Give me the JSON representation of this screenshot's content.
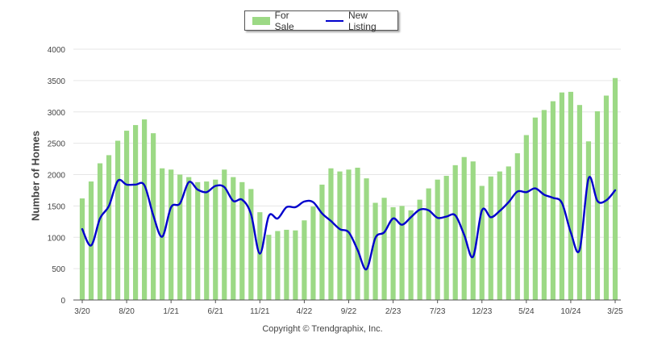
{
  "legend": {
    "for_sale_label": "For Sale",
    "new_listing_label": "New Listing"
  },
  "footer": {
    "copyright": "Copyright © Trendgraphix, Inc."
  },
  "colors": {
    "bar": "#9cd985",
    "line": "#0000cc",
    "grid": "#e6e6e6",
    "axis": "#555555"
  },
  "chart_data": {
    "type": "bar",
    "ylabel": "Number of Homes",
    "ylim": [
      0,
      4000
    ],
    "yticks": [
      0,
      500,
      1000,
      1500,
      2000,
      2500,
      3000,
      3500,
      4000
    ],
    "x_tick_labels": [
      "3/20",
      "8/20",
      "1/21",
      "6/21",
      "11/21",
      "4/22",
      "9/22",
      "2/23",
      "7/23",
      "12/23",
      "5/24",
      "10/24",
      "3/25"
    ],
    "categories": [
      "3/20",
      "4/20",
      "5/20",
      "6/20",
      "7/20",
      "8/20",
      "9/20",
      "10/20",
      "11/20",
      "12/20",
      "1/21",
      "2/21",
      "3/21",
      "4/21",
      "5/21",
      "6/21",
      "7/21",
      "8/21",
      "9/21",
      "10/21",
      "11/21",
      "12/21",
      "1/22",
      "2/22",
      "3/22",
      "4/22",
      "5/22",
      "6/22",
      "7/22",
      "8/22",
      "9/22",
      "10/22",
      "11/22",
      "12/22",
      "1/23",
      "2/23",
      "3/23",
      "4/23",
      "5/23",
      "6/23",
      "7/23",
      "8/23",
      "9/23",
      "10/23",
      "11/23",
      "12/23",
      "1/24",
      "2/24",
      "3/24",
      "4/24",
      "5/24",
      "6/24",
      "7/24",
      "8/24",
      "9/24",
      "10/24",
      "11/24",
      "12/24",
      "1/25",
      "2/25",
      "3/25"
    ],
    "series": [
      {
        "name": "For Sale",
        "type": "bar",
        "values": [
          1620,
          1890,
          2180,
          2310,
          2540,
          2700,
          2790,
          2880,
          2660,
          2100,
          2080,
          2000,
          1960,
          1880,
          1890,
          1920,
          2080,
          1960,
          1880,
          1770,
          1400,
          1040,
          1100,
          1120,
          1110,
          1270,
          1490,
          1840,
          2100,
          2050,
          2080,
          2110,
          1940,
          1550,
          1630,
          1480,
          1500,
          1430,
          1600,
          1780,
          1920,
          1980,
          2150,
          2280,
          2210,
          1820,
          1970,
          2050,
          2130,
          2340,
          2630,
          2910,
          3030,
          3170,
          3310,
          3320,
          3110,
          2530,
          3010,
          3260,
          3540
        ]
      },
      {
        "name": "New Listing",
        "type": "line",
        "values": [
          1130,
          870,
          1300,
          1500,
          1900,
          1840,
          1840,
          1830,
          1350,
          1010,
          1480,
          1540,
          1880,
          1760,
          1720,
          1820,
          1800,
          1580,
          1600,
          1370,
          740,
          1340,
          1300,
          1480,
          1480,
          1570,
          1560,
          1380,
          1260,
          1130,
          1080,
          800,
          490,
          990,
          1080,
          1300,
          1200,
          1320,
          1440,
          1430,
          1310,
          1330,
          1350,
          1040,
          690,
          1430,
          1320,
          1420,
          1560,
          1730,
          1720,
          1780,
          1680,
          1630,
          1550,
          1080,
          800,
          1940,
          1580,
          1590,
          1750
        ]
      }
    ]
  }
}
